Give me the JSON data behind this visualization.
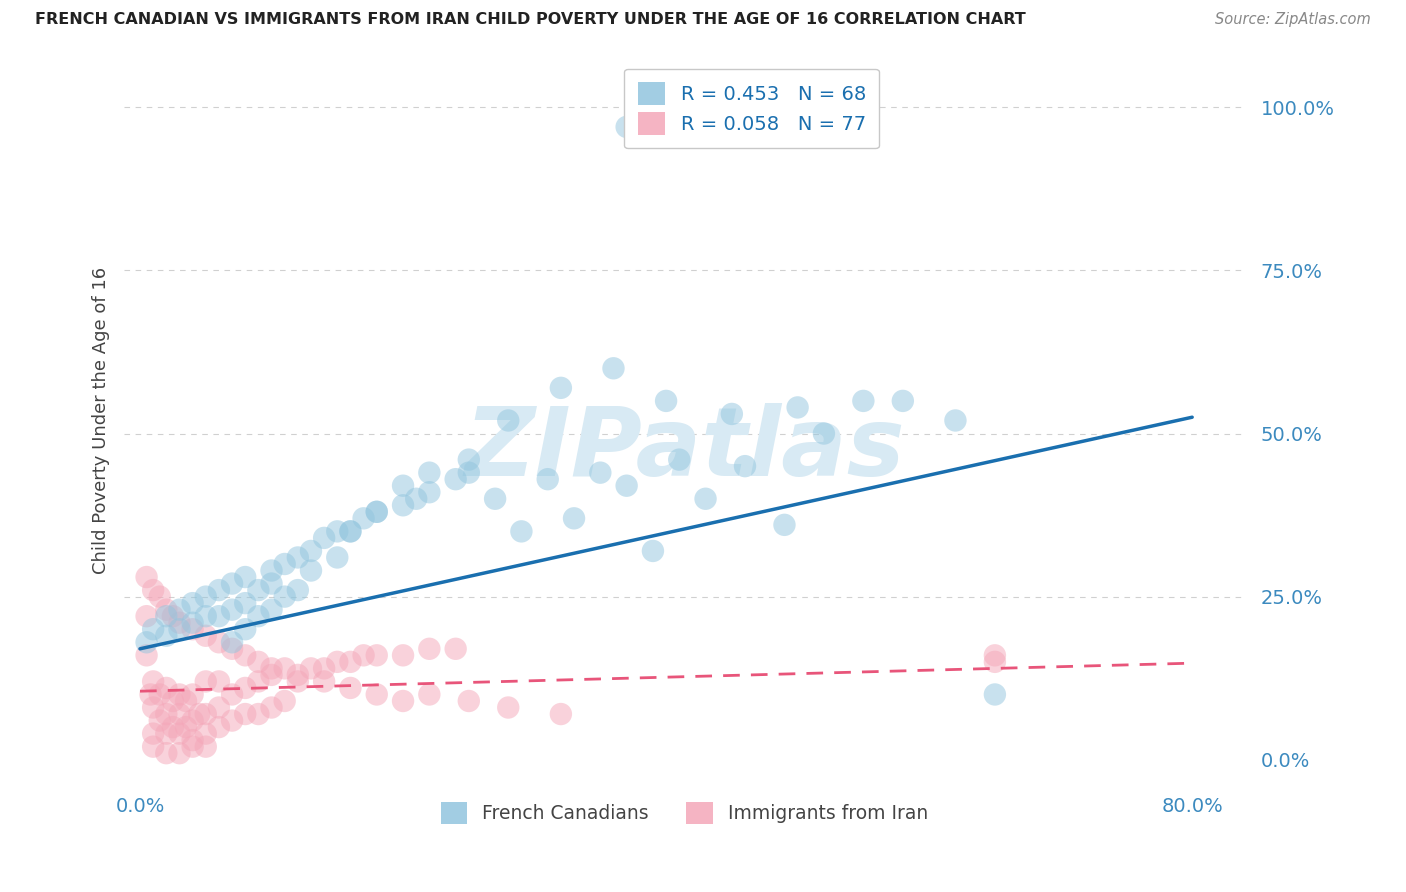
{
  "title": "FRENCH CANADIAN VS IMMIGRANTS FROM IRAN CHILD POVERTY UNDER THE AGE OF 16 CORRELATION CHART",
  "source": "Source: ZipAtlas.com",
  "ylabel_label": "Child Poverty Under the Age of 16",
  "right_yticklabels": [
    "0.0%",
    "25.0%",
    "50.0%",
    "75.0%",
    "100.0%"
  ],
  "right_yticks": [
    0.0,
    0.25,
    0.5,
    0.75,
    1.0
  ],
  "xtick_labels": [
    "0.0%",
    "80.0%"
  ],
  "xtick_vals": [
    0.0,
    0.8
  ],
  "legend_r1": "R = 0.453   N = 68",
  "legend_r2": "R = 0.058   N = 77",
  "legend_b1": "French Canadians",
  "legend_b2": "Immigrants from Iran",
  "blue_color": "#92c5de",
  "pink_color": "#f4a7b9",
  "blue_line_color": "#1a6faf",
  "pink_line_color": "#e8557a",
  "watermark": "ZIPatlas",
  "watermark_color": "#d8eaf4",
  "tick_color": "#3c8abf",
  "title_color": "#222222",
  "source_color": "#888888",
  "blue_trend_x0": 0.0,
  "blue_trend_y0": 0.17,
  "blue_trend_x1": 0.8,
  "blue_trend_y1": 0.525,
  "pink_trend_x0": 0.0,
  "pink_trend_y0": 0.105,
  "pink_trend_x1": 0.8,
  "pink_trend_y1": 0.148,
  "ygrid_vals": [
    0.25,
    0.5,
    0.75,
    1.0
  ],
  "grid_color": "#d0d0d0",
  "xlim": [
    -0.012,
    0.84
  ],
  "ylim": [
    -0.04,
    1.08
  ],
  "blue_x": [
    0.37,
    0.005,
    0.01,
    0.02,
    0.02,
    0.03,
    0.03,
    0.04,
    0.04,
    0.05,
    0.05,
    0.06,
    0.06,
    0.07,
    0.07,
    0.08,
    0.08,
    0.09,
    0.1,
    0.1,
    0.11,
    0.12,
    0.13,
    0.14,
    0.15,
    0.16,
    0.17,
    0.18,
    0.2,
    0.21,
    0.22,
    0.24,
    0.25,
    0.27,
    0.29,
    0.31,
    0.33,
    0.35,
    0.37,
    0.39,
    0.41,
    0.43,
    0.46,
    0.49,
    0.52,
    0.55,
    0.58,
    0.62,
    0.65,
    0.07,
    0.08,
    0.09,
    0.1,
    0.11,
    0.12,
    0.13,
    0.15,
    0.16,
    0.18,
    0.2,
    0.22,
    0.25,
    0.28,
    0.32,
    0.36,
    0.4,
    0.45,
    0.5
  ],
  "blue_y": [
    0.97,
    0.18,
    0.2,
    0.19,
    0.22,
    0.2,
    0.23,
    0.21,
    0.24,
    0.22,
    0.25,
    0.22,
    0.26,
    0.23,
    0.27,
    0.24,
    0.28,
    0.26,
    0.27,
    0.29,
    0.3,
    0.31,
    0.32,
    0.34,
    0.35,
    0.35,
    0.37,
    0.38,
    0.39,
    0.4,
    0.41,
    0.43,
    0.44,
    0.4,
    0.35,
    0.43,
    0.37,
    0.44,
    0.42,
    0.32,
    0.46,
    0.4,
    0.45,
    0.36,
    0.5,
    0.55,
    0.55,
    0.52,
    0.1,
    0.18,
    0.2,
    0.22,
    0.23,
    0.25,
    0.26,
    0.29,
    0.31,
    0.35,
    0.38,
    0.42,
    0.44,
    0.46,
    0.52,
    0.57,
    0.6,
    0.55,
    0.53,
    0.54
  ],
  "pink_x": [
    0.005,
    0.005,
    0.008,
    0.01,
    0.01,
    0.01,
    0.015,
    0.015,
    0.02,
    0.02,
    0.02,
    0.025,
    0.025,
    0.03,
    0.03,
    0.03,
    0.035,
    0.035,
    0.04,
    0.04,
    0.04,
    0.045,
    0.05,
    0.05,
    0.05,
    0.06,
    0.06,
    0.06,
    0.07,
    0.07,
    0.08,
    0.08,
    0.09,
    0.09,
    0.1,
    0.1,
    0.11,
    0.11,
    0.12,
    0.13,
    0.14,
    0.15,
    0.16,
    0.17,
    0.18,
    0.2,
    0.22,
    0.24,
    0.005,
    0.01,
    0.015,
    0.02,
    0.025,
    0.03,
    0.04,
    0.05,
    0.06,
    0.07,
    0.08,
    0.09,
    0.1,
    0.12,
    0.14,
    0.16,
    0.18,
    0.2,
    0.22,
    0.25,
    0.28,
    0.32,
    0.65,
    0.65,
    0.01,
    0.02,
    0.03,
    0.04,
    0.05
  ],
  "pink_y": [
    0.16,
    0.22,
    0.1,
    0.04,
    0.08,
    0.12,
    0.06,
    0.1,
    0.04,
    0.07,
    0.11,
    0.05,
    0.09,
    0.04,
    0.07,
    0.1,
    0.05,
    0.09,
    0.03,
    0.06,
    0.1,
    0.07,
    0.04,
    0.07,
    0.12,
    0.05,
    0.08,
    0.12,
    0.06,
    0.1,
    0.07,
    0.11,
    0.07,
    0.12,
    0.08,
    0.13,
    0.09,
    0.14,
    0.12,
    0.14,
    0.14,
    0.15,
    0.15,
    0.16,
    0.16,
    0.16,
    0.17,
    0.17,
    0.28,
    0.26,
    0.25,
    0.23,
    0.22,
    0.21,
    0.2,
    0.19,
    0.18,
    0.17,
    0.16,
    0.15,
    0.14,
    0.13,
    0.12,
    0.11,
    0.1,
    0.09,
    0.1,
    0.09,
    0.08,
    0.07,
    0.15,
    0.16,
    0.02,
    0.01,
    0.01,
    0.02,
    0.02
  ]
}
